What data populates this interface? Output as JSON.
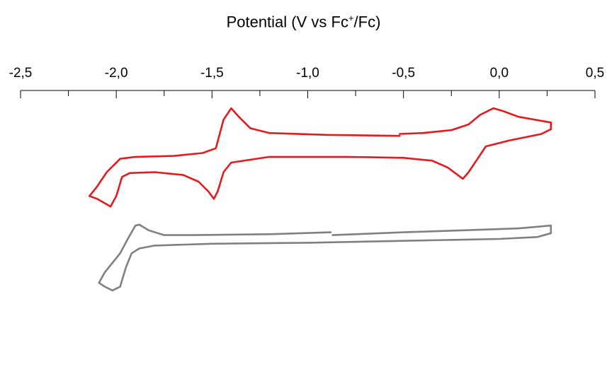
{
  "chart_data": {
    "type": "line",
    "title": "",
    "xlabel": {
      "prefix": "Potential (V vs Fc",
      "superscript": "+",
      "suffix": "/Fc)"
    },
    "ylabel": "",
    "x_axis_position": "top",
    "xlim": [
      -2.5,
      0.5
    ],
    "x_ticks": [
      -2.5,
      -2.0,
      -1.5,
      -1.0,
      -0.5,
      0.0,
      0.5
    ],
    "x_tick_labels": [
      "-2,5",
      "-2,0",
      "-1,5",
      "-1,0",
      "-0,5",
      "0,0",
      "0,5"
    ],
    "x_minor_step": 0.25,
    "grid": false,
    "legend": "none",
    "series": [
      {
        "color": "#e41a1c",
        "segments": [
          [
            [
              -0.52,
              0.28
            ],
            [
              -0.9,
              0.29
            ],
            [
              -1.2,
              0.31
            ],
            [
              -1.3,
              0.36
            ],
            [
              -1.36,
              0.48
            ],
            [
              -1.4,
              0.57
            ],
            [
              -1.44,
              0.45
            ],
            [
              -1.48,
              0.15
            ],
            [
              -1.55,
              0.1
            ],
            [
              -1.7,
              0.07
            ],
            [
              -1.9,
              0.06
            ],
            [
              -1.98,
              0.04
            ],
            [
              -2.05,
              -0.1
            ],
            [
              -2.1,
              -0.25
            ],
            [
              -2.14,
              -0.35
            ],
            [
              -2.1,
              -0.38
            ],
            [
              -2.03,
              -0.46
            ],
            [
              -2.0,
              -0.35
            ],
            [
              -1.97,
              -0.15
            ],
            [
              -1.93,
              -0.11
            ],
            [
              -1.8,
              -0.1
            ],
            [
              -1.65,
              -0.13
            ],
            [
              -1.57,
              -0.2
            ],
            [
              -1.52,
              -0.3
            ],
            [
              -1.49,
              -0.38
            ],
            [
              -1.47,
              -0.3
            ],
            [
              -1.44,
              -0.1
            ],
            [
              -1.4,
              0.0
            ],
            [
              -1.2,
              0.06
            ],
            [
              -0.8,
              0.06
            ],
            [
              -0.5,
              0.05
            ],
            [
              -0.35,
              0.02
            ],
            [
              -0.27,
              -0.05
            ],
            [
              -0.21,
              -0.14
            ],
            [
              -0.19,
              -0.17
            ],
            [
              -0.16,
              -0.1
            ],
            [
              -0.11,
              0.05
            ],
            [
              -0.07,
              0.17
            ],
            [
              0.05,
              0.23
            ],
            [
              0.22,
              0.3
            ],
            [
              0.27,
              0.35
            ],
            [
              0.27,
              0.42
            ],
            [
              0.1,
              0.48
            ],
            [
              0.02,
              0.54
            ],
            [
              -0.03,
              0.57
            ],
            [
              -0.1,
              0.5
            ],
            [
              -0.16,
              0.4
            ],
            [
              -0.25,
              0.34
            ],
            [
              -0.4,
              0.31
            ],
            [
              -0.52,
              0.3
            ]
          ]
        ]
      },
      {
        "color": "#808080",
        "segments": [
          [
            [
              -0.88,
              -0.73
            ],
            [
              -1.2,
              -0.75
            ],
            [
              -1.6,
              -0.76
            ],
            [
              -1.75,
              -0.76
            ],
            [
              -1.83,
              -0.71
            ],
            [
              -1.88,
              -0.65
            ],
            [
              -1.9,
              -0.66
            ],
            [
              -1.94,
              -0.8
            ],
            [
              -1.98,
              -0.95
            ],
            [
              -2.02,
              -1.05
            ],
            [
              -2.06,
              -1.15
            ],
            [
              -2.09,
              -1.26
            ],
            [
              -2.06,
              -1.3
            ],
            [
              -2.02,
              -1.34
            ],
            [
              -1.98,
              -1.3
            ],
            [
              -1.95,
              -1.1
            ],
            [
              -1.92,
              -0.95
            ],
            [
              -1.88,
              -0.9
            ],
            [
              -1.8,
              -0.87
            ],
            [
              -1.5,
              -0.85
            ],
            [
              -1.0,
              -0.84
            ],
            [
              -0.5,
              -0.82
            ],
            [
              0.0,
              -0.8
            ],
            [
              0.2,
              -0.78
            ],
            [
              0.27,
              -0.74
            ],
            [
              0.27,
              -0.66
            ],
            [
              0.1,
              -0.69
            ],
            [
              -0.2,
              -0.71
            ],
            [
              -0.5,
              -0.73
            ],
            [
              -0.87,
              -0.76
            ]
          ]
        ]
      }
    ]
  }
}
